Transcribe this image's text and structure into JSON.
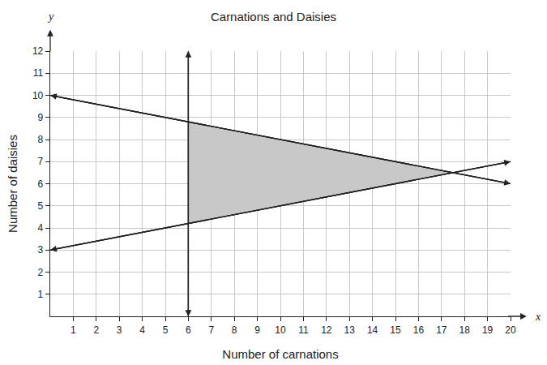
{
  "chart_data": {
    "type": "line",
    "title": "Carnations and Daisies",
    "x_label": "Number of carnations",
    "y_label": "Number of daisies",
    "annotations": [
      "x",
      "y"
    ],
    "xlim": [
      0,
      20
    ],
    "ylim": [
      0,
      12
    ],
    "xticks": [
      1,
      2,
      3,
      4,
      5,
      6,
      7,
      8,
      9,
      10,
      11,
      12,
      13,
      14,
      15,
      16,
      17,
      18,
      19,
      20
    ],
    "yticks": [
      1,
      2,
      3,
      4,
      5,
      6,
      7,
      8,
      9,
      10,
      11,
      12
    ],
    "grid": true,
    "series": [
      {
        "type": "area",
        "color": "#c8c8c8",
        "x": [
          6,
          17.5,
          6
        ],
        "values": [
          8.8,
          6.5,
          4.2
        ]
      },
      {
        "type": "line",
        "color": "#222222",
        "marker": "arrow",
        "x": [
          0,
          20
        ],
        "values": [
          10,
          6
        ]
      },
      {
        "type": "line",
        "color": "#222222",
        "marker": "arrow",
        "x": [
          0,
          20
        ],
        "values": [
          3,
          7
        ]
      },
      {
        "type": "line",
        "color": "#222222",
        "marker": "arrow",
        "x": [
          6,
          6
        ],
        "values": [
          0,
          12
        ]
      }
    ]
  }
}
